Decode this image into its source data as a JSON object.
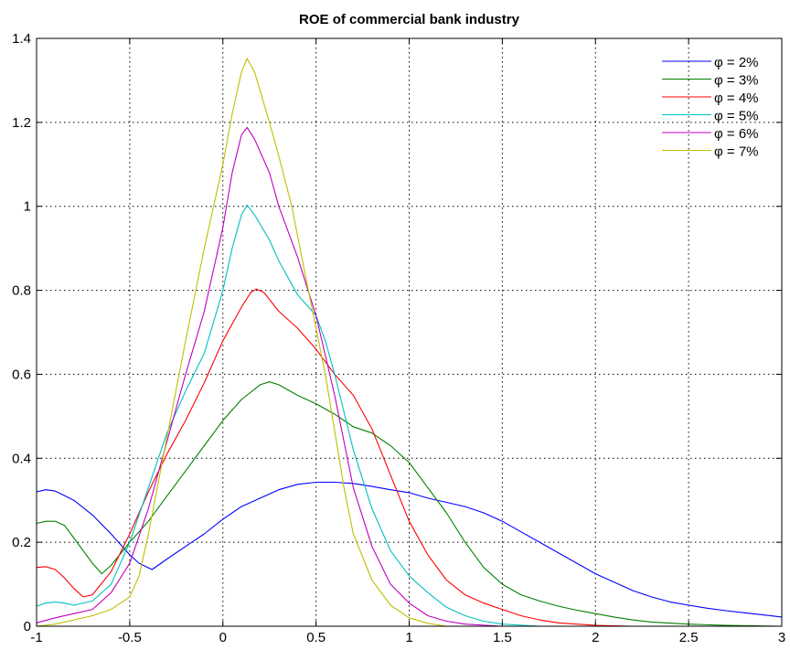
{
  "chart_data": {
    "type": "line",
    "title": "ROE of commercial bank industry",
    "xlabel": "",
    "ylabel": "",
    "xlim": [
      -1,
      3
    ],
    "ylim": [
      0,
      1.4
    ],
    "grid": true,
    "legend_position": "top-right",
    "x_ticks": [
      {
        "value": -1,
        "label": "-1"
      },
      {
        "value": -0.5,
        "label": "-0.5"
      },
      {
        "value": 0,
        "label": "0"
      },
      {
        "value": 0.5,
        "label": "0.5"
      },
      {
        "value": 1,
        "label": "1"
      },
      {
        "value": 1.5,
        "label": "1.5"
      },
      {
        "value": 2,
        "label": "2"
      },
      {
        "value": 2.5,
        "label": "2.5"
      },
      {
        "value": 3,
        "label": "3"
      }
    ],
    "y_ticks": [
      {
        "value": 0,
        "label": "0"
      },
      {
        "value": 0.2,
        "label": "0.2"
      },
      {
        "value": 0.4,
        "label": "0.4"
      },
      {
        "value": 0.6,
        "label": "0.6"
      },
      {
        "value": 0.8,
        "label": "0.8"
      },
      {
        "value": 1,
        "label": "1"
      },
      {
        "value": 1.2,
        "label": "1.2"
      },
      {
        "value": 1.4,
        "label": "1.4"
      }
    ],
    "series": [
      {
        "name": "φ = 2%",
        "color": "#0000ff",
        "points": [
          [
            -1,
            0.32
          ],
          [
            -0.95,
            0.325
          ],
          [
            -0.9,
            0.322
          ],
          [
            -0.8,
            0.3
          ],
          [
            -0.7,
            0.265
          ],
          [
            -0.6,
            0.22
          ],
          [
            -0.5,
            0.17
          ],
          [
            -0.45,
            0.15
          ],
          [
            -0.38,
            0.135
          ],
          [
            -0.3,
            0.16
          ],
          [
            -0.2,
            0.19
          ],
          [
            -0.1,
            0.22
          ],
          [
            0,
            0.255
          ],
          [
            0.1,
            0.285
          ],
          [
            0.2,
            0.305
          ],
          [
            0.3,
            0.325
          ],
          [
            0.4,
            0.338
          ],
          [
            0.5,
            0.343
          ],
          [
            0.6,
            0.343
          ],
          [
            0.7,
            0.34
          ],
          [
            0.8,
            0.333
          ],
          [
            0.9,
            0.325
          ],
          [
            1,
            0.318
          ],
          [
            1.1,
            0.305
          ],
          [
            1.2,
            0.295
          ],
          [
            1.3,
            0.285
          ],
          [
            1.4,
            0.27
          ],
          [
            1.5,
            0.25
          ],
          [
            1.6,
            0.225
          ],
          [
            1.7,
            0.2
          ],
          [
            1.8,
            0.175
          ],
          [
            1.9,
            0.15
          ],
          [
            2,
            0.125
          ],
          [
            2.1,
            0.105
          ],
          [
            2.2,
            0.085
          ],
          [
            2.3,
            0.07
          ],
          [
            2.4,
            0.058
          ],
          [
            2.5,
            0.05
          ],
          [
            2.6,
            0.043
          ],
          [
            2.7,
            0.037
          ],
          [
            2.8,
            0.032
          ],
          [
            2.9,
            0.027
          ],
          [
            3,
            0.022
          ]
        ]
      },
      {
        "name": "φ = 3%",
        "color": "#008000",
        "points": [
          [
            -1,
            0.245
          ],
          [
            -0.95,
            0.25
          ],
          [
            -0.9,
            0.25
          ],
          [
            -0.85,
            0.24
          ],
          [
            -0.8,
            0.21
          ],
          [
            -0.75,
            0.18
          ],
          [
            -0.7,
            0.15
          ],
          [
            -0.65,
            0.125
          ],
          [
            -0.6,
            0.145
          ],
          [
            -0.5,
            0.2
          ],
          [
            -0.4,
            0.25
          ],
          [
            -0.3,
            0.31
          ],
          [
            -0.2,
            0.37
          ],
          [
            -0.1,
            0.43
          ],
          [
            0,
            0.49
          ],
          [
            0.1,
            0.54
          ],
          [
            0.2,
            0.575
          ],
          [
            0.25,
            0.582
          ],
          [
            0.3,
            0.575
          ],
          [
            0.4,
            0.55
          ],
          [
            0.5,
            0.53
          ],
          [
            0.6,
            0.505
          ],
          [
            0.7,
            0.475
          ],
          [
            0.8,
            0.46
          ],
          [
            0.9,
            0.43
          ],
          [
            1,
            0.39
          ],
          [
            1.1,
            0.33
          ],
          [
            1.2,
            0.27
          ],
          [
            1.3,
            0.2
          ],
          [
            1.4,
            0.14
          ],
          [
            1.5,
            0.1
          ],
          [
            1.6,
            0.075
          ],
          [
            1.7,
            0.06
          ],
          [
            1.8,
            0.048
          ],
          [
            1.9,
            0.038
          ],
          [
            2,
            0.03
          ],
          [
            2.1,
            0.022
          ],
          [
            2.2,
            0.015
          ],
          [
            2.3,
            0.01
          ],
          [
            2.5,
            0.005
          ],
          [
            2.7,
            0.002
          ],
          [
            3,
            0.0
          ]
        ]
      },
      {
        "name": "φ = 4%",
        "color": "#ff0000",
        "points": [
          [
            -1,
            0.14
          ],
          [
            -0.95,
            0.142
          ],
          [
            -0.9,
            0.135
          ],
          [
            -0.85,
            0.115
          ],
          [
            -0.8,
            0.09
          ],
          [
            -0.75,
            0.07
          ],
          [
            -0.7,
            0.075
          ],
          [
            -0.6,
            0.13
          ],
          [
            -0.5,
            0.22
          ],
          [
            -0.4,
            0.32
          ],
          [
            -0.3,
            0.41
          ],
          [
            -0.2,
            0.49
          ],
          [
            -0.1,
            0.58
          ],
          [
            0,
            0.68
          ],
          [
            0.1,
            0.76
          ],
          [
            0.15,
            0.795
          ],
          [
            0.18,
            0.803
          ],
          [
            0.22,
            0.795
          ],
          [
            0.3,
            0.75
          ],
          [
            0.4,
            0.71
          ],
          [
            0.5,
            0.66
          ],
          [
            0.6,
            0.6
          ],
          [
            0.7,
            0.55
          ],
          [
            0.8,
            0.47
          ],
          [
            0.9,
            0.36
          ],
          [
            1,
            0.25
          ],
          [
            1.1,
            0.17
          ],
          [
            1.2,
            0.11
          ],
          [
            1.3,
            0.075
          ],
          [
            1.4,
            0.055
          ],
          [
            1.5,
            0.04
          ],
          [
            1.6,
            0.025
          ],
          [
            1.7,
            0.015
          ],
          [
            1.8,
            0.008
          ],
          [
            2,
            0.002
          ],
          [
            2.2,
            0.0
          ]
        ]
      },
      {
        "name": "φ = 5%",
        "color": "#00bfbf",
        "points": [
          [
            -1,
            0.048
          ],
          [
            -0.95,
            0.055
          ],
          [
            -0.9,
            0.058
          ],
          [
            -0.85,
            0.055
          ],
          [
            -0.8,
            0.05
          ],
          [
            -0.7,
            0.06
          ],
          [
            -0.6,
            0.1
          ],
          [
            -0.5,
            0.2
          ],
          [
            -0.4,
            0.33
          ],
          [
            -0.3,
            0.46
          ],
          [
            -0.2,
            0.56
          ],
          [
            -0.1,
            0.65
          ],
          [
            0,
            0.8
          ],
          [
            0.05,
            0.9
          ],
          [
            0.1,
            0.98
          ],
          [
            0.13,
            1.003
          ],
          [
            0.17,
            0.98
          ],
          [
            0.25,
            0.92
          ],
          [
            0.3,
            0.87
          ],
          [
            0.4,
            0.79
          ],
          [
            0.5,
            0.74
          ],
          [
            0.55,
            0.68
          ],
          [
            0.6,
            0.6
          ],
          [
            0.7,
            0.42
          ],
          [
            0.8,
            0.28
          ],
          [
            0.9,
            0.18
          ],
          [
            1,
            0.12
          ],
          [
            1.1,
            0.08
          ],
          [
            1.2,
            0.045
          ],
          [
            1.3,
            0.025
          ],
          [
            1.4,
            0.012
          ],
          [
            1.5,
            0.005
          ],
          [
            1.7,
            0.0
          ]
        ]
      },
      {
        "name": "φ = 6%",
        "color": "#bf00bf",
        "points": [
          [
            -1,
            0.008
          ],
          [
            -0.9,
            0.02
          ],
          [
            -0.8,
            0.03
          ],
          [
            -0.7,
            0.04
          ],
          [
            -0.6,
            0.08
          ],
          [
            -0.5,
            0.15
          ],
          [
            -0.4,
            0.28
          ],
          [
            -0.3,
            0.44
          ],
          [
            -0.2,
            0.6
          ],
          [
            -0.1,
            0.75
          ],
          [
            0,
            0.95
          ],
          [
            0.05,
            1.08
          ],
          [
            0.1,
            1.17
          ],
          [
            0.13,
            1.188
          ],
          [
            0.17,
            1.16
          ],
          [
            0.25,
            1.08
          ],
          [
            0.3,
            1.0
          ],
          [
            0.4,
            0.88
          ],
          [
            0.5,
            0.74
          ],
          [
            0.6,
            0.55
          ],
          [
            0.7,
            0.33
          ],
          [
            0.8,
            0.19
          ],
          [
            0.9,
            0.1
          ],
          [
            1,
            0.055
          ],
          [
            1.1,
            0.025
          ],
          [
            1.2,
            0.012
          ],
          [
            1.3,
            0.005
          ],
          [
            1.5,
            0.0
          ]
        ]
      },
      {
        "name": "φ = 7%",
        "color": "#bfbf00",
        "points": [
          [
            -1,
            0.0
          ],
          [
            -0.9,
            0.005
          ],
          [
            -0.8,
            0.015
          ],
          [
            -0.7,
            0.025
          ],
          [
            -0.6,
            0.04
          ],
          [
            -0.5,
            0.07
          ],
          [
            -0.45,
            0.12
          ],
          [
            -0.4,
            0.22
          ],
          [
            -0.3,
            0.45
          ],
          [
            -0.2,
            0.68
          ],
          [
            -0.1,
            0.9
          ],
          [
            0,
            1.1
          ],
          [
            0.05,
            1.22
          ],
          [
            0.1,
            1.32
          ],
          [
            0.13,
            1.352
          ],
          [
            0.17,
            1.32
          ],
          [
            0.25,
            1.2
          ],
          [
            0.3,
            1.12
          ],
          [
            0.37,
            1.0
          ],
          [
            0.45,
            0.82
          ],
          [
            0.55,
            0.6
          ],
          [
            0.65,
            0.33
          ],
          [
            0.7,
            0.22
          ],
          [
            0.8,
            0.11
          ],
          [
            0.9,
            0.05
          ],
          [
            1,
            0.02
          ],
          [
            1.1,
            0.007
          ],
          [
            1.2,
            0.0
          ]
        ]
      }
    ]
  }
}
